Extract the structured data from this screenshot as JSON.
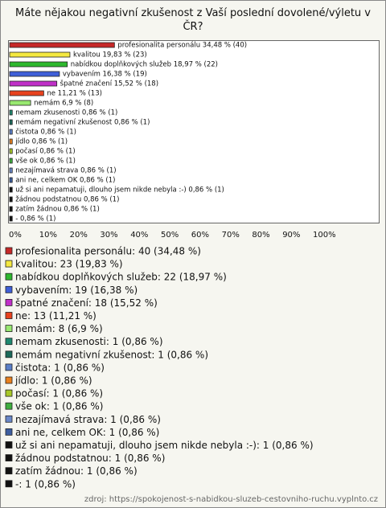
{
  "chart_data": {
    "type": "bar",
    "orientation": "horizontal",
    "title": "Máte nějakou negativní zkušenost z Vaší poslední dovolené/výletu v ČR?",
    "categories": [
      "profesionalita personálu",
      "kvalitou",
      "nabídkou doplňkových služeb",
      "vybavením",
      "špatné značení",
      "ne",
      "nemám",
      "nemam zkusenosti",
      "nemám negativní zkušenost",
      "čistota",
      "jídlo",
      "počasí",
      "vše ok",
      "nezajímavá strava",
      "ani ne, celkem OK",
      "už si ani nepamatuji, dlouho jsem nikde nebyla :-)",
      "žádnou podstatnou",
      "zatím žádnou",
      "-"
    ],
    "values": [
      34.48,
      19.83,
      18.97,
      16.38,
      15.52,
      11.21,
      6.9,
      0.86,
      0.86,
      0.86,
      0.86,
      0.86,
      0.86,
      0.86,
      0.86,
      0.86,
      0.86,
      0.86,
      0.86
    ],
    "value_labels": [
      "profesionalita personálu 34,48 % (40)",
      "kvalitou 19,83 % (23)",
      "nabídkou doplňkových služeb 18,97 % (22)",
      "vybavením 16,38 % (19)",
      "špatné značení 15,52 % (18)",
      "ne 11,21 % (13)",
      "nemám 6,9 % (8)",
      "nemam zkusenosti 0,86 % (1)",
      "nemám negativní zkušenost 0,86 % (1)",
      "čistota 0,86 % (1)",
      "jídlo 0,86 % (1)",
      "počasí 0,86 % (1)",
      "vše ok 0,86 % (1)",
      "nezajímavá strava 0,86 % (1)",
      "ani ne, celkem OK 0,86 % (1)",
      "už si ani nepamatuji, dlouho jsem nikde nebyla :-) 0,86 % (1)",
      "žádnou podstatnou 0,86 % (1)",
      "zatím žádnou 0,86 % (1)",
      "- 0,86 % (1)"
    ],
    "legend_labels": [
      "profesionalita personálu: 40 (34,48 %)",
      "kvalitou: 23 (19,83 %)",
      "nabídkou doplňkových služeb: 22 (18,97 %)",
      "vybavením: 19 (16,38 %)",
      "špatné značení: 18 (15,52 %)",
      "ne: 13 (11,21 %)",
      "nemám: 8 (6,9 %)",
      "nemam zkusenosti: 1 (0,86 %)",
      "nemám negativní zkušenost: 1 (0,86 %)",
      "čistota: 1 (0,86 %)",
      "jídlo: 1 (0,86 %)",
      "počasí: 1 (0,86 %)",
      "vše ok: 1 (0,86 %)",
      "nezajímavá strava: 1 (0,86 %)",
      "ani ne, celkem OK: 1 (0,86 %)",
      "už si ani nepamatuji, dlouho jsem nikde nebyla :-): 1 (0,86 %)",
      "žádnou podstatnou: 1 (0,86 %)",
      "zatím žádnou: 1 (0,86 %)",
      "-: 1 (0,86 %)"
    ],
    "colors": [
      "#c62828",
      "#f4e840",
      "#2eb82e",
      "#3f5fd8",
      "#c030c8",
      "#e8421e",
      "#98e870",
      "#1f8a70",
      "#1c6a5a",
      "#5a7fc8",
      "#e8801e",
      "#a8c828",
      "#3fae3f",
      "#6a88c8",
      "#3d5ea0",
      "#111111",
      "#111111",
      "#111111",
      "#111111"
    ],
    "xlim": [
      0,
      100
    ],
    "xticks": [
      {
        "value": 0,
        "label": "0%"
      },
      {
        "value": 10,
        "label": "10%"
      },
      {
        "value": 20,
        "label": "20%"
      },
      {
        "value": 30,
        "label": "30%"
      },
      {
        "value": 40,
        "label": "40%"
      },
      {
        "value": 50,
        "label": "50%"
      },
      {
        "value": 60,
        "label": "60%"
      },
      {
        "value": 70,
        "label": "70%"
      },
      {
        "value": 80,
        "label": "80%"
      },
      {
        "value": 90,
        "label": "90%"
      },
      {
        "value": 100,
        "label": "100%"
      }
    ],
    "source": "zdroj: https://spokojenost-s-nabidkou-sluzeb-cestovniho-ruchu.vyplnto.cz"
  }
}
